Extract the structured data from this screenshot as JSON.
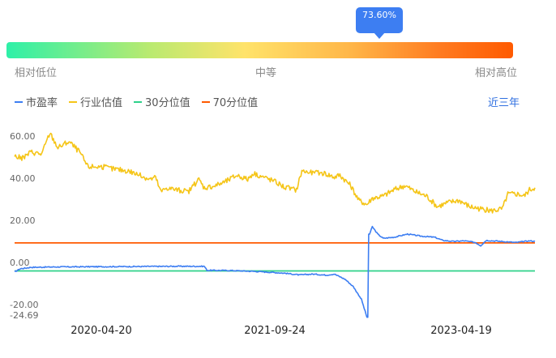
{
  "gauge": {
    "percentile_label": "73.60%",
    "percentile": 0.736,
    "low_label": "相对低位",
    "mid_label": "中等",
    "high_label": "相对高位"
  },
  "range_selector": "近三年",
  "chart_data": {
    "type": "line",
    "x_labels": [
      "2020-04-20",
      "2021-09-24",
      "2023-04-19"
    ],
    "ylim": [
      -24.69,
      65
    ],
    "yticks": [
      60.0,
      40.0,
      20.0,
      0.0,
      -20.0,
      -24.69
    ],
    "ytick_labels": [
      "60.00",
      "40.00",
      "20.00",
      "0.00",
      "-20.00",
      "-24.69"
    ],
    "legend_position": "top-left",
    "series": [
      {
        "name": "市盈率",
        "color": "#3d7ef2",
        "points": [
          [
            0,
            -3.0
          ],
          [
            2,
            -1.5
          ],
          [
            6,
            -0.8
          ],
          [
            15,
            -0.6
          ],
          [
            30,
            -0.5
          ],
          [
            45,
            -0.4
          ],
          [
            60,
            -0.3
          ],
          [
            70,
            -0.3
          ],
          [
            71,
            -2.2
          ],
          [
            80,
            -2.3
          ],
          [
            90,
            -2.8
          ],
          [
            100,
            -3.6
          ],
          [
            105,
            -4.4
          ],
          [
            110,
            -4.0
          ],
          [
            115,
            -4.5
          ],
          [
            118,
            -4.0
          ],
          [
            122,
            -6.5
          ],
          [
            125,
            -10.0
          ],
          [
            128,
            -16.0
          ],
          [
            130,
            -24.5
          ],
          [
            131,
            15.0
          ],
          [
            132,
            18.5
          ],
          [
            134,
            15.0
          ],
          [
            136,
            13.0
          ],
          [
            140,
            13.5
          ],
          [
            145,
            15.0
          ],
          [
            150,
            14.0
          ],
          [
            155,
            13.5
          ],
          [
            158,
            12.0
          ],
          [
            162,
            11.5
          ],
          [
            166,
            11.8
          ],
          [
            170,
            11.0
          ],
          [
            172,
            9.5
          ],
          [
            174,
            12.0
          ],
          [
            180,
            11.5
          ],
          [
            185,
            11.0
          ],
          [
            190,
            11.8
          ],
          [
            192,
            11.5
          ]
        ]
      },
      {
        "name": "行业估值",
        "color": "#f5c518",
        "points": [
          [
            0,
            52
          ],
          [
            3,
            51
          ],
          [
            6,
            54
          ],
          [
            10,
            53
          ],
          [
            13,
            63
          ],
          [
            16,
            56
          ],
          [
            20,
            59
          ],
          [
            24,
            54
          ],
          [
            27,
            47
          ],
          [
            32,
            47
          ],
          [
            36,
            46
          ],
          [
            42,
            45
          ],
          [
            46,
            43
          ],
          [
            50,
            41
          ],
          [
            52,
            42
          ],
          [
            54,
            35
          ],
          [
            56,
            37
          ],
          [
            60,
            36
          ],
          [
            64,
            35
          ],
          [
            68,
            41
          ],
          [
            70,
            37
          ],
          [
            74,
            38
          ],
          [
            78,
            40
          ],
          [
            82,
            43
          ],
          [
            86,
            41
          ],
          [
            88,
            44
          ],
          [
            92,
            42
          ],
          [
            96,
            40
          ],
          [
            100,
            37
          ],
          [
            104,
            36
          ],
          [
            106,
            45
          ],
          [
            110,
            44
          ],
          [
            114,
            44
          ],
          [
            118,
            42
          ],
          [
            120,
            43
          ],
          [
            124,
            38
          ],
          [
            127,
            31
          ],
          [
            130,
            29
          ],
          [
            132,
            32
          ],
          [
            136,
            33
          ],
          [
            140,
            36
          ],
          [
            144,
            38
          ],
          [
            148,
            35
          ],
          [
            152,
            33
          ],
          [
            156,
            28
          ],
          [
            160,
            30
          ],
          [
            164,
            31
          ],
          [
            168,
            28
          ],
          [
            172,
            27
          ],
          [
            176,
            26
          ],
          [
            180,
            27
          ],
          [
            182,
            34
          ],
          [
            186,
            34
          ],
          [
            188,
            33
          ],
          [
            190,
            36
          ],
          [
            192,
            37
          ]
        ]
      },
      {
        "name": "30分位值",
        "color": "#2ed18a",
        "points": [
          [
            0,
            -2.5
          ],
          [
            192,
            -2.5
          ]
        ]
      },
      {
        "name": "70分位值",
        "color": "#ff5a00",
        "points": [
          [
            0,
            10.8
          ],
          [
            192,
            10.8
          ]
        ]
      }
    ]
  }
}
